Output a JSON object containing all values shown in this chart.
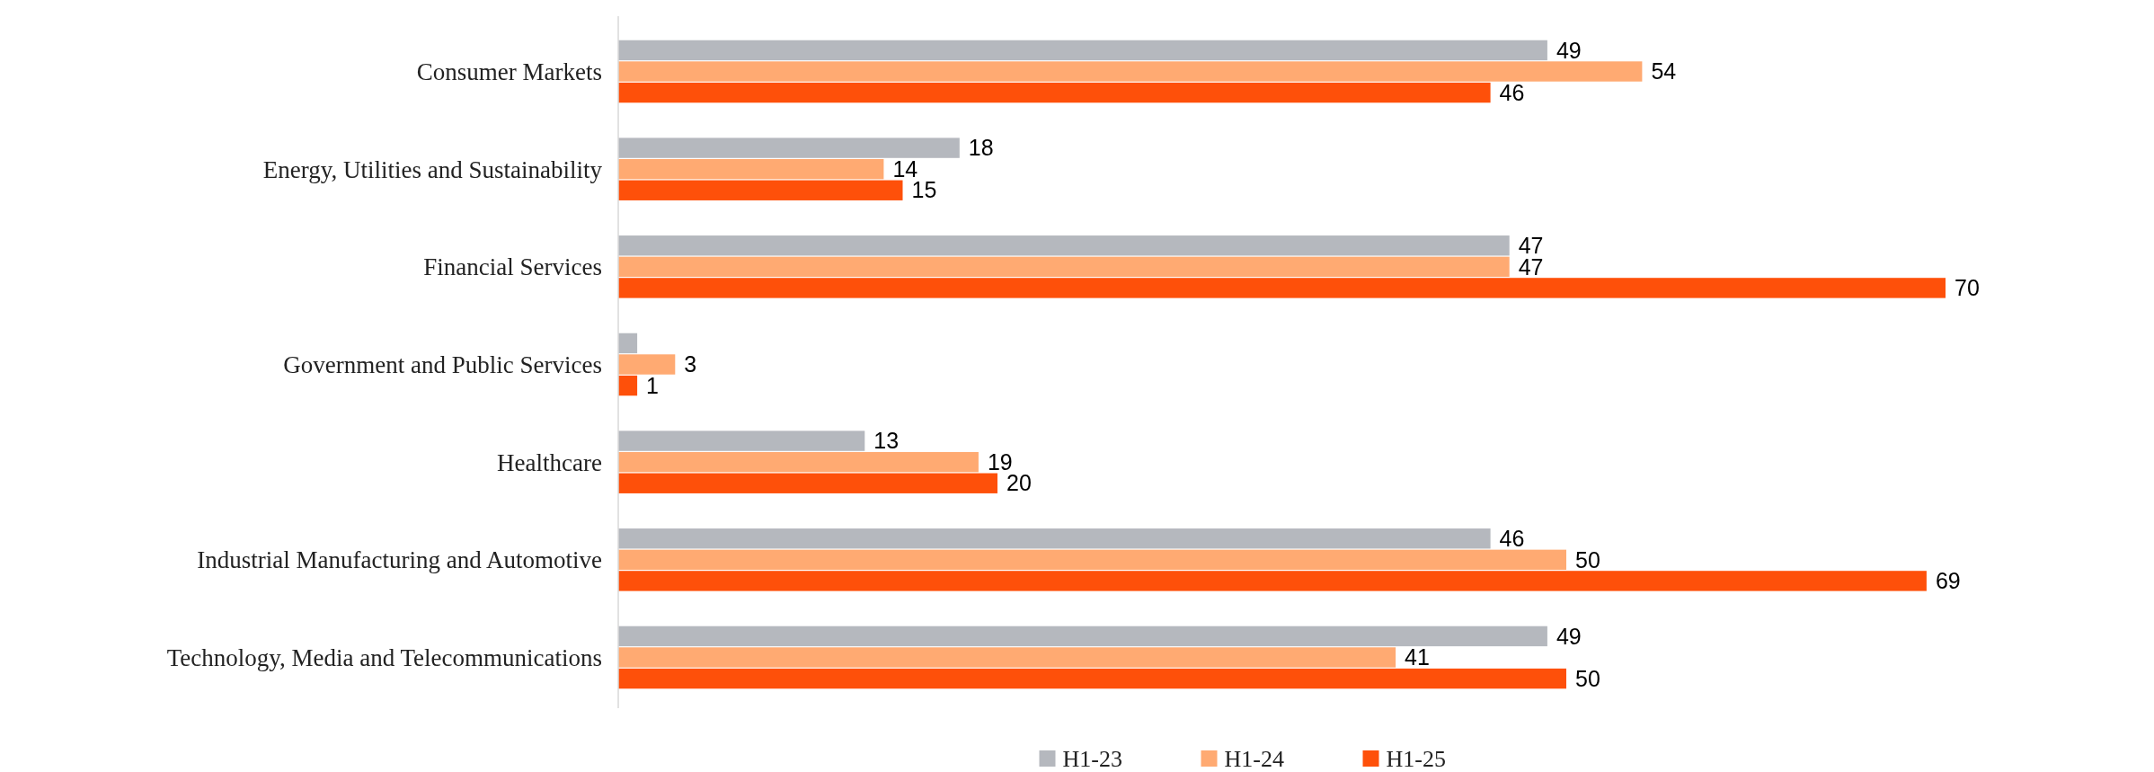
{
  "chart_data": {
    "type": "bar",
    "orientation": "horizontal",
    "categories": [
      "Consumer Markets",
      "Energy, Utilities and Sustainability",
      "Financial Services",
      "Government and Public Services",
      "Healthcare",
      "Industrial Manufacturing and Automotive",
      "Technology, Media and Telecommunications"
    ],
    "series": [
      {
        "name": "H1-23",
        "color": "#b5b8be",
        "values": [
          49,
          18,
          47,
          1,
          13,
          46,
          49
        ],
        "value_labels": [
          "49",
          "18",
          "47",
          null,
          "13",
          "46",
          "49"
        ]
      },
      {
        "name": "H1-24",
        "color": "#ffaa72",
        "values": [
          54,
          14,
          47,
          3,
          19,
          50,
          41
        ],
        "value_labels": [
          "54",
          "14",
          "47",
          "3",
          "19",
          "50",
          "41"
        ]
      },
      {
        "name": "H1-25",
        "color": "#fe500a",
        "values": [
          46,
          15,
          70,
          1,
          20,
          69,
          50
        ],
        "value_labels": [
          "46",
          "15",
          "70",
          "1",
          "20",
          "69",
          "50"
        ]
      }
    ],
    "legend": "bottom"
  }
}
